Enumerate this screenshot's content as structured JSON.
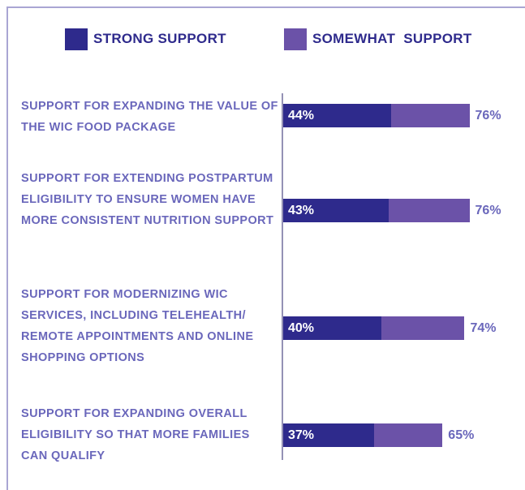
{
  "chart_data": {
    "type": "bar",
    "orientation": "horizontal",
    "stacked": true,
    "categories": [
      "SUPPORT FOR EXPANDING THE VALUE OF THE WIC FOOD PACKAGE",
      "SUPPORT FOR EXTENDING POSTPARTUM ELIGIBILITY TO ENSURE WOMEN HAVE MORE CONSISTENT NUTRITION SUPPORT",
      "SUPPORT FOR MODERNIZING WIC SERVICES, INCLUDING TELEHEALTH/ REMOTE APPOINTMENTS AND ONLINE SHOPPING OPTIONS",
      "SUPPORT FOR EXPANDING OVERALL ELIGIBILITY SO THAT MORE FAMILIES CAN QUALIFY"
    ],
    "series": [
      {
        "name": "STRONG SUPPORT",
        "color": "#2e2a8c",
        "values": [
          44,
          43,
          40,
          37
        ],
        "value_labels": [
          "44%",
          "43%",
          "40%",
          "37%"
        ]
      },
      {
        "name": "SOMEWHAT  SUPPORT",
        "color": "#6b52a8",
        "values": [
          32,
          33,
          34,
          28
        ]
      }
    ],
    "totals": [
      76,
      76,
      74,
      65
    ],
    "total_labels": [
      "76%",
      "76%",
      "74%",
      "65%"
    ]
  }
}
